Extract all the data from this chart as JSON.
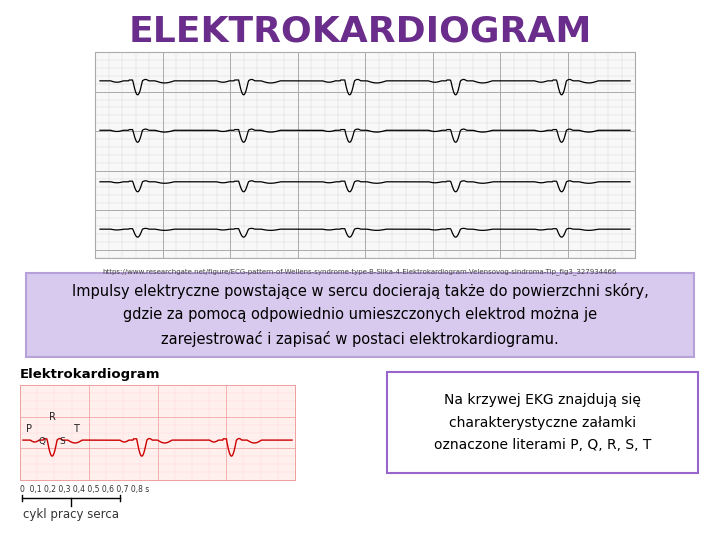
{
  "title": "ELEKTROKARDIOGRAM",
  "title_color": "#6B2D8B",
  "title_fontsize": 26,
  "bg_color": "#FFFFFF",
  "url_text": "https://www.researchgate.net/figure/ECG-pattern-of-Wellens-syndrome-type-B-Slika-4-Elektrokardiogram-Velensovog-sindroma-Tip_fig3_327934466",
  "url_fontsize": 5.0,
  "url_color": "#444444",
  "main_text": "Impulsy elektryczne powstające w sercu docierają także do powierzchni skóry,\ngdzie za pomocą odpowiednio umieszczonych elektrod można je\nzarejestrować i zapisać w postaci elektrokardiogramu.",
  "main_text_fontsize": 10.5,
  "main_text_color": "#000000",
  "main_text_bg": "#D8CAEE",
  "main_text_border": "#B8A0D8",
  "ekg_label": "Elektrokardiogram",
  "ekg_label_fontsize": 9.5,
  "note_text": "Na krzywej EKG znajdują się\ncharakterystyczne załamki\noznaczone literami P, Q, R, S, T",
  "note_fontsize": 10,
  "note_color": "#000000",
  "note_bg": "#FFFFFF",
  "note_border": "#9966CC",
  "cykl_text": "cykl pracy serca",
  "cykl_fontsize": 8.5,
  "ecg_bg": "#F8F8F8",
  "ecg_grid_minor": "#CCCCCC",
  "ecg_grid_major": "#AAAAAA",
  "ecg_border": "#AAAAAA",
  "ekg_chart_bg": "#FFF0EE",
  "ekg_grid_minor": "#FFCCCC",
  "ekg_grid_major": "#EE9999"
}
